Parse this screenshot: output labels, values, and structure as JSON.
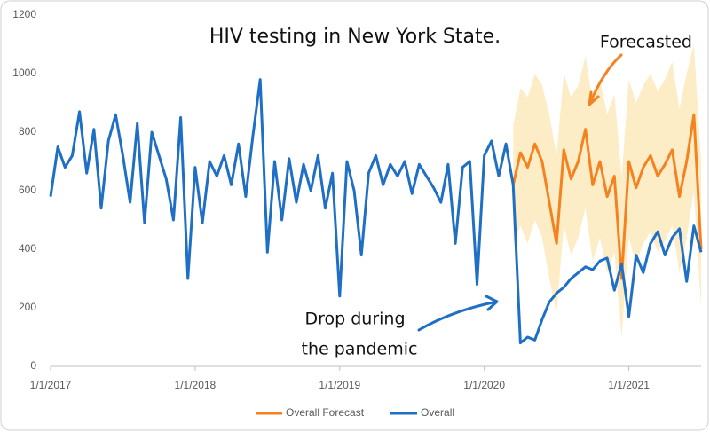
{
  "chart_data": {
    "type": "line",
    "title": "HIV testing in New York State.",
    "annotations": [
      "Forecasted",
      "Drop during",
      "the pandemic"
    ],
    "xlim": [
      2017,
      2021.5
    ],
    "xticks": [
      {
        "value": 2017,
        "label": "1/1/2017"
      },
      {
        "value": 2018,
        "label": "1/1/2018"
      },
      {
        "value": 2019,
        "label": "1/1/2019"
      },
      {
        "value": 2020,
        "label": "1/1/2020"
      },
      {
        "value": 2021,
        "label": "1/1/2021"
      }
    ],
    "ylim": [
      0,
      1200
    ],
    "yticks": [
      0,
      200,
      400,
      600,
      800,
      1000,
      1200
    ],
    "grid": false,
    "legend": "bottom",
    "series": [
      {
        "name": "Overall Forecast",
        "color": "#f58220",
        "x": [
          2020.2,
          2020.25,
          2020.3,
          2020.35,
          2020.4,
          2020.45,
          2020.5,
          2020.55,
          2020.6,
          2020.65,
          2020.7,
          2020.75,
          2020.8,
          2020.85,
          2020.9,
          2020.95,
          2021,
          2021.05,
          2021.1,
          2021.15,
          2021.2,
          2021.25,
          2021.3,
          2021.35,
          2021.4,
          2021.45,
          2021.5
        ],
        "values": [
          620,
          730,
          680,
          760,
          700,
          560,
          420,
          740,
          640,
          700,
          810,
          620,
          700,
          580,
          650,
          300,
          700,
          610,
          680,
          720,
          650,
          690,
          740,
          580,
          700,
          860,
          400
        ],
        "band_color": "#fde9b8",
        "upper": [
          820,
          950,
          920,
          1000,
          960,
          860,
          720,
          1000,
          920,
          960,
          1060,
          900,
          980,
          860,
          930,
          650,
          980,
          900,
          960,
          1000,
          940,
          980,
          1040,
          880,
          1000,
          1100,
          700
        ],
        "lower": [
          420,
          480,
          420,
          500,
          440,
          300,
          180,
          480,
          380,
          440,
          540,
          360,
          440,
          320,
          390,
          100,
          440,
          350,
          420,
          460,
          390,
          430,
          480,
          320,
          440,
          600,
          200
        ]
      },
      {
        "name": "Overall",
        "color": "#1f6fc5",
        "x": [
          2017,
          2017.05,
          2017.1,
          2017.15,
          2017.2,
          2017.25,
          2017.3,
          2017.35,
          2017.4,
          2017.45,
          2017.5,
          2017.55,
          2017.6,
          2017.65,
          2017.7,
          2017.75,
          2017.8,
          2017.85,
          2017.9,
          2017.95,
          2018,
          2018.05,
          2018.1,
          2018.15,
          2018.2,
          2018.25,
          2018.3,
          2018.35,
          2018.4,
          2018.45,
          2018.5,
          2018.55,
          2018.6,
          2018.65,
          2018.7,
          2018.75,
          2018.8,
          2018.85,
          2018.9,
          2018.95,
          2019,
          2019.05,
          2019.1,
          2019.15,
          2019.2,
          2019.25,
          2019.3,
          2019.35,
          2019.4,
          2019.45,
          2019.5,
          2019.55,
          2019.6,
          2019.65,
          2019.7,
          2019.75,
          2019.8,
          2019.85,
          2019.9,
          2019.95,
          2020,
          2020.05,
          2020.1,
          2020.15,
          2020.2,
          2020.25,
          2020.3,
          2020.35,
          2020.4,
          2020.45,
          2020.5,
          2020.55,
          2020.6,
          2020.65,
          2020.7,
          2020.75,
          2020.8,
          2020.85,
          2020.9,
          2020.95,
          2021,
          2021.05,
          2021.1,
          2021.15,
          2021.2,
          2021.25,
          2021.3,
          2021.35,
          2021.4,
          2021.45,
          2021.5
        ],
        "values": [
          580,
          750,
          680,
          720,
          870,
          660,
          810,
          540,
          770,
          860,
          720,
          560,
          830,
          490,
          800,
          720,
          640,
          500,
          850,
          300,
          680,
          490,
          700,
          650,
          720,
          620,
          760,
          580,
          790,
          980,
          390,
          700,
          500,
          710,
          560,
          690,
          600,
          720,
          540,
          660,
          240,
          700,
          600,
          380,
          660,
          720,
          620,
          690,
          650,
          700,
          590,
          690,
          650,
          610,
          560,
          690,
          420,
          680,
          700,
          280,
          720,
          770,
          650,
          760,
          620,
          80,
          100,
          90,
          160,
          220,
          250,
          270,
          300,
          320,
          340,
          330,
          360,
          370,
          260,
          350,
          170,
          380,
          320,
          420,
          460,
          380,
          440,
          470,
          290,
          480,
          390
        ]
      }
    ]
  }
}
